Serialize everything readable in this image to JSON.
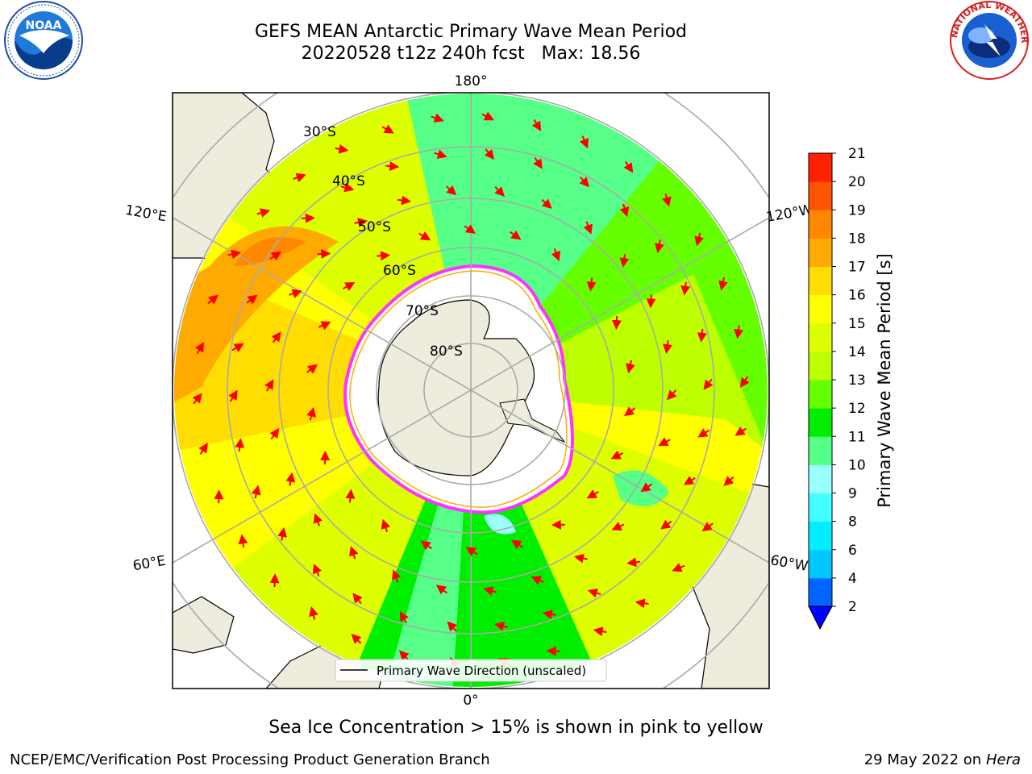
{
  "title": {
    "line1": "GEFS MEAN Antarctic Primary Wave Mean Period",
    "line2": "20220528 t12z 240h fcst   Max: 18.56"
  },
  "map": {
    "projection": "south-polar-stereographic",
    "longitude_labels": {
      "top": "180°",
      "bottom": "0°",
      "left_upper": "120°E",
      "left_lower": "60°E",
      "right_upper": "120°W",
      "right_lower": "60°W"
    },
    "latitude_labels": [
      "30°S",
      "40°S",
      "50°S",
      "60°S",
      "70°S",
      "80°S"
    ],
    "legend_label": "Primary Wave Direction (unscaled)",
    "arrow_color": "#ff0000",
    "land_color": "#eeecdc",
    "ice_edge_colors": [
      "#ff33ff",
      "#ffaa00",
      "#ffff00"
    ]
  },
  "colorbar": {
    "label": "Primary Wave Mean Period [s]",
    "ticks": [
      "2",
      "4",
      "6",
      "8",
      "9",
      "10",
      "11",
      "12",
      "13",
      "14",
      "15",
      "16",
      "17",
      "18",
      "19",
      "20",
      "21"
    ],
    "colors": [
      "#0066ff",
      "#00c8ff",
      "#00eeff",
      "#44ffff",
      "#99ffff",
      "#55ff88",
      "#00ee00",
      "#66ff00",
      "#bbff00",
      "#ddff00",
      "#ffff00",
      "#ffdd00",
      "#ffaa00",
      "#ff8800",
      "#ff5500",
      "#ff2200"
    ],
    "extend_color": "#0000ff"
  },
  "captions": {
    "ice": "Sea Ice Concentration > 15% is shown in pink to yellow",
    "footer_left": "NCEP/EMC/Verification Post Processing Product Generation Branch",
    "footer_right_date": "29 May 2022 on",
    "footer_right_machine": "Hera"
  },
  "logos": {
    "noaa_text": "NOAA",
    "nws_text": "NATIONAL WEATHER SERVICE"
  }
}
